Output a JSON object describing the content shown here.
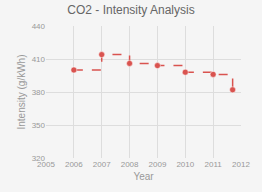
{
  "chart_data": {
    "type": "step",
    "title": "CO2 - Intensity Analysis",
    "xlabel": "Year",
    "ylabel": "Intensity (g/kWh)",
    "x": [
      2006,
      2007,
      2008,
      2009,
      2010,
      2011,
      2011.7
    ],
    "values": [
      400,
      414,
      406,
      404,
      398,
      396,
      382
    ],
    "color": "#d9534f",
    "line_style": "dashed",
    "marker": "circle",
    "xlim": [
      2005,
      2012
    ],
    "ylim": [
      320,
      440
    ],
    "xticks": [
      2005,
      2006,
      2007,
      2008,
      2009,
      2010,
      2011,
      2012
    ],
    "yticks": [
      320,
      350,
      380,
      410,
      440
    ],
    "grid": true
  }
}
